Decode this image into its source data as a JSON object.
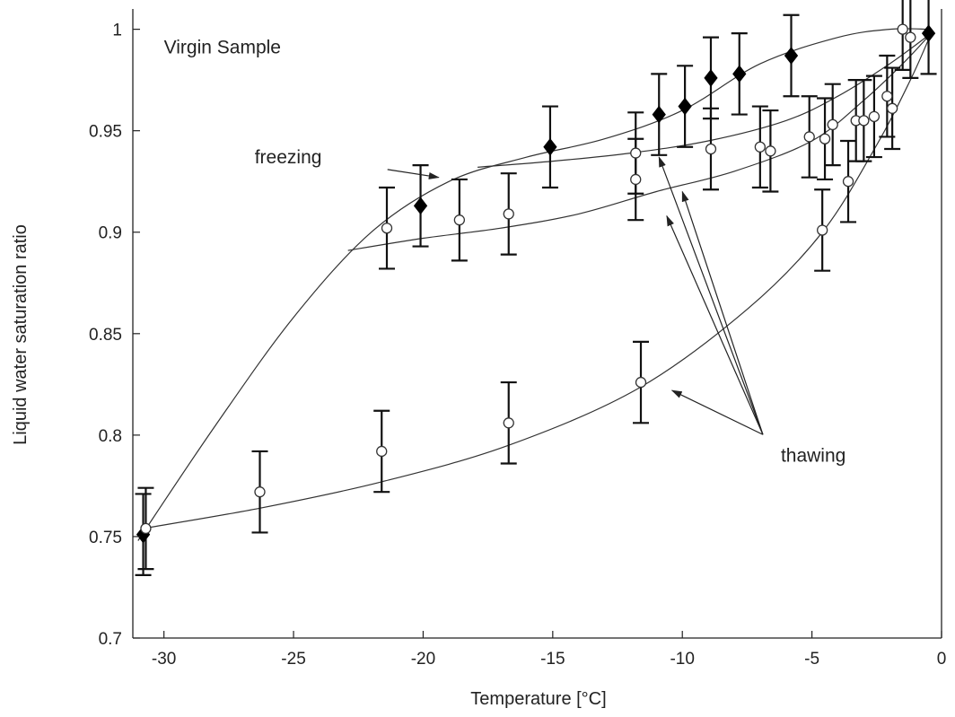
{
  "chart_data": {
    "type": "scatter",
    "title": "",
    "xlabel": "Temperature [°C]",
    "ylabel": "Liquid water saturation ratio",
    "xlim": [
      -31.2,
      0
    ],
    "ylim": [
      0.7,
      1.01
    ],
    "xticks": [
      -30,
      -25,
      -20,
      -15,
      -10,
      -5,
      0
    ],
    "yticks": [
      0.7,
      0.75,
      0.8,
      0.85,
      0.9,
      0.95,
      1
    ],
    "xtick_labels": [
      "-30",
      "-25",
      "-20",
      "-15",
      "-10",
      "-5",
      "0"
    ],
    "ytick_labels": [
      "0.7",
      "0.75",
      "0.8",
      "0.85",
      "0.9",
      "0.95",
      "1"
    ],
    "grid": false,
    "error_bar_halfwidth": 0.02,
    "series": [
      {
        "marker": "filled-diamond",
        "points": [
          {
            "x": -30.8,
            "y": 0.751
          },
          {
            "x": -20.1,
            "y": 0.913
          },
          {
            "x": -15.1,
            "y": 0.942
          },
          {
            "x": -10.9,
            "y": 0.958
          },
          {
            "x": -9.9,
            "y": 0.962
          },
          {
            "x": -8.9,
            "y": 0.976
          },
          {
            "x": -7.8,
            "y": 0.978
          },
          {
            "x": -5.8,
            "y": 0.987
          },
          {
            "x": -0.5,
            "y": 0.998
          }
        ]
      },
      {
        "marker": "open-circle",
        "points": [
          {
            "x": -30.7,
            "y": 0.754
          },
          {
            "x": -26.3,
            "y": 0.772
          },
          {
            "x": -21.6,
            "y": 0.792
          },
          {
            "x": -16.7,
            "y": 0.806
          },
          {
            "x": -11.6,
            "y": 0.826
          },
          {
            "x": -4.6,
            "y": 0.901
          },
          {
            "x": -3.6,
            "y": 0.925
          },
          {
            "x": -21.4,
            "y": 0.902
          },
          {
            "x": -18.6,
            "y": 0.906
          },
          {
            "x": -16.7,
            "y": 0.909
          },
          {
            "x": -11.8,
            "y": 0.926
          },
          {
            "x": -11.8,
            "y": 0.939
          },
          {
            "x": -8.9,
            "y": 0.941
          },
          {
            "x": -7.0,
            "y": 0.942
          },
          {
            "x": -6.6,
            "y": 0.94
          },
          {
            "x": -5.1,
            "y": 0.947
          },
          {
            "x": -4.5,
            "y": 0.946
          },
          {
            "x": -4.2,
            "y": 0.953
          },
          {
            "x": -3.3,
            "y": 0.955
          },
          {
            "x": -3.0,
            "y": 0.955
          },
          {
            "x": -2.6,
            "y": 0.957
          },
          {
            "x": -2.1,
            "y": 0.967
          },
          {
            "x": -1.9,
            "y": 0.961
          },
          {
            "x": -1.5,
            "y": 1.0
          },
          {
            "x": -1.2,
            "y": 0.996
          }
        ]
      }
    ],
    "curves": [
      {
        "role": "freezing",
        "points": [
          [
            -31.0,
            0.748
          ],
          [
            -28.0,
            0.805
          ],
          [
            -25.0,
            0.858
          ],
          [
            -22.0,
            0.9
          ],
          [
            -19.0,
            0.925
          ],
          [
            -16.0,
            0.937
          ],
          [
            -13.0,
            0.946
          ],
          [
            -10.0,
            0.96
          ],
          [
            -7.0,
            0.983
          ],
          [
            -4.0,
            0.996
          ],
          [
            -2.0,
            1.0
          ],
          [
            -0.5,
            1.0
          ]
        ]
      },
      {
        "role": "thawing",
        "points": [
          [
            -30.8,
            0.754
          ],
          [
            -26.3,
            0.764
          ],
          [
            -21.6,
            0.777
          ],
          [
            -16.7,
            0.795
          ],
          [
            -11.7,
            0.823
          ],
          [
            -7.5,
            0.862
          ],
          [
            -4.6,
            0.9
          ],
          [
            -2.5,
            0.943
          ],
          [
            -1.2,
            0.975
          ],
          [
            -0.4,
            0.998
          ]
        ]
      },
      {
        "role": "thawing",
        "points": [
          [
            -22.9,
            0.891
          ],
          [
            -20.0,
            0.897
          ],
          [
            -17.0,
            0.902
          ],
          [
            -14.0,
            0.909
          ],
          [
            -11.0,
            0.92
          ],
          [
            -8.0,
            0.93
          ],
          [
            -5.0,
            0.945
          ],
          [
            -3.0,
            0.965
          ],
          [
            -1.5,
            0.983
          ],
          [
            -0.4,
            0.998
          ]
        ]
      },
      {
        "role": "thawing",
        "points": [
          [
            -17.9,
            0.932
          ],
          [
            -15.0,
            0.935
          ],
          [
            -12.0,
            0.939
          ],
          [
            -9.0,
            0.945
          ],
          [
            -6.0,
            0.955
          ],
          [
            -4.0,
            0.967
          ],
          [
            -2.0,
            0.983
          ],
          [
            -0.4,
            0.998
          ]
        ]
      }
    ],
    "annotations": [
      {
        "text": "Virgin Sample",
        "x": -30.0,
        "y": 0.988
      },
      {
        "text": "freezing",
        "x": -26.5,
        "y": 0.934,
        "arrow_to": [
          -19.4,
          0.927
        ]
      },
      {
        "text": "thawing",
        "x": -6.2,
        "y": 0.787,
        "arrows_to": [
          [
            -10.4,
            0.822
          ],
          [
            -10.6,
            0.908
          ],
          [
            -10.0,
            0.92
          ],
          [
            -10.9,
            0.937
          ]
        ]
      }
    ]
  }
}
